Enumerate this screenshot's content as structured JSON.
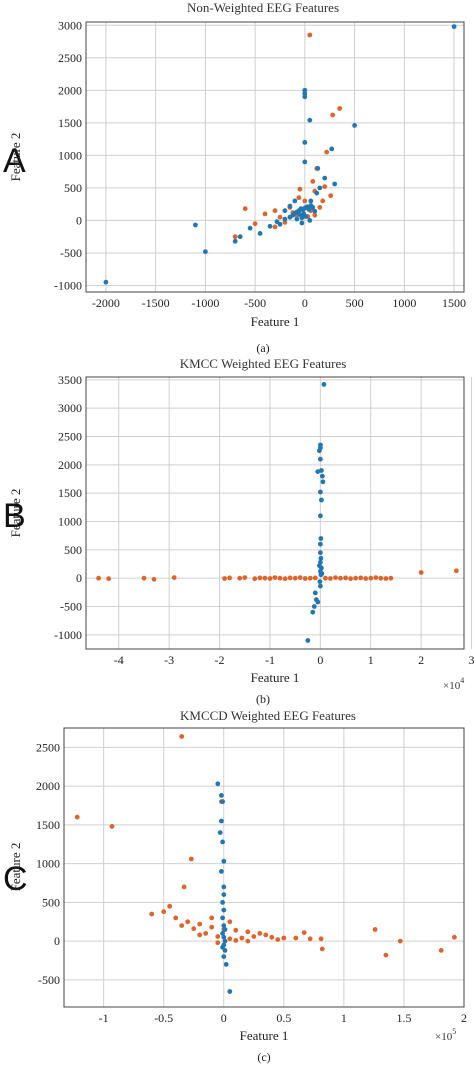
{
  "series_colors": {
    "blue": "#1f77b4",
    "orange": "#e0642a"
  },
  "chart_data": [
    {
      "type": "scatter",
      "letter": "A",
      "title": "Non-Weighted EEG Features",
      "xlabel": "Feature 1",
      "ylabel": "Feature 2",
      "caption": "(a)",
      "multiplier_base": "",
      "multiplier_exp": "",
      "xlim": [
        -2200,
        1600
      ],
      "ylim": [
        -1100,
        3050
      ],
      "xticks": [
        -2000,
        -1500,
        -1000,
        -500,
        0,
        500,
        1000,
        1500
      ],
      "xtick_labels": [
        "-2000",
        "-1500",
        "-1000",
        "-500",
        "0",
        "500",
        "1000",
        "1500"
      ],
      "yticks": [
        -1000,
        -500,
        0,
        500,
        1000,
        1500,
        2000,
        2500,
        3000
      ],
      "ytick_labels": [
        "-1000",
        "-500",
        "0",
        "500",
        "1000",
        "1500",
        "2000",
        "2500",
        "3000"
      ],
      "series": [
        {
          "color": "orange",
          "points": [
            [
              50,
              2850
            ],
            [
              280,
              1620
            ],
            [
              350,
              1720
            ],
            [
              220,
              1050
            ],
            [
              120,
              800
            ],
            [
              80,
              600
            ],
            [
              -60,
              350
            ],
            [
              -150,
              200
            ],
            [
              -300,
              150
            ],
            [
              -400,
              100
            ],
            [
              -500,
              -50
            ],
            [
              -300,
              -100
            ],
            [
              -700,
              -250
            ],
            [
              -600,
              180
            ],
            [
              -50,
              480
            ],
            [
              100,
              450
            ],
            [
              200,
              520
            ],
            [
              180,
              300
            ],
            [
              -120,
              120
            ],
            [
              30,
              60
            ],
            [
              -80,
              80
            ],
            [
              60,
              150
            ],
            [
              150,
              200
            ],
            [
              -250,
              50
            ],
            [
              -200,
              -30
            ],
            [
              100,
              80
            ],
            [
              0,
              300
            ],
            [
              260,
              380
            ]
          ]
        },
        {
          "color": "blue",
          "points": [
            [
              1500,
              2980
            ],
            [
              -2000,
              -950
            ],
            [
              -1000,
              -480
            ],
            [
              -1100,
              -70
            ],
            [
              -700,
              -320
            ],
            [
              -650,
              -250
            ],
            [
              -550,
              -120
            ],
            [
              -450,
              -200
            ],
            [
              -350,
              -90
            ],
            [
              -250,
              -60
            ],
            [
              -280,
              -20
            ],
            [
              -200,
              20
            ],
            [
              -150,
              50
            ],
            [
              -120,
              80
            ],
            [
              -100,
              110
            ],
            [
              -80,
              130
            ],
            [
              -60,
              150
            ],
            [
              -40,
              180
            ],
            [
              -20,
              160
            ],
            [
              0,
              190
            ],
            [
              20,
              210
            ],
            [
              40,
              170
            ],
            [
              60,
              230
            ],
            [
              80,
              200
            ],
            [
              100,
              140
            ],
            [
              -50,
              90
            ],
            [
              -30,
              40
            ],
            [
              0,
              2000
            ],
            [
              0,
              1950
            ],
            [
              0,
              1900
            ],
            [
              0,
              1200
            ],
            [
              0,
              900
            ],
            [
              50,
              1540
            ],
            [
              500,
              1460
            ],
            [
              270,
              1100
            ],
            [
              130,
              800
            ],
            [
              200,
              650
            ],
            [
              300,
              560
            ],
            [
              150,
              500
            ],
            [
              120,
              420
            ],
            [
              60,
              300
            ],
            [
              -100,
              300
            ],
            [
              -150,
              220
            ],
            [
              -200,
              150
            ],
            [
              -10,
              100
            ],
            [
              10,
              60
            ],
            [
              -80,
              20
            ],
            [
              -30,
              -40
            ],
            [
              50,
              0
            ]
          ]
        }
      ]
    },
    {
      "type": "scatter",
      "letter": "B",
      "title": "KMCC Weighted EEG Features",
      "xlabel": "Feature 1",
      "ylabel": "Feature 2",
      "caption": "(b)",
      "multiplier_base": "×10",
      "multiplier_exp": "4",
      "xlim": [
        -4.65,
        2.85
      ],
      "ylim": [
        -1250,
        3550
      ],
      "xticks": [
        -4,
        -3,
        -2,
        -1,
        0,
        1,
        2,
        3
      ],
      "xtick_labels": [
        "-4",
        "-3",
        "-2",
        "-1",
        "0",
        "1",
        "2",
        "3"
      ],
      "yticks": [
        -1000,
        -500,
        0,
        500,
        1000,
        1500,
        2000,
        2500,
        3000,
        3500
      ],
      "ytick_labels": [
        "-1000",
        "-500",
        "0",
        "500",
        "1000",
        "1500",
        "2000",
        "2500",
        "3000",
        "3500"
      ],
      "series": [
        {
          "color": "orange",
          "points": [
            [
              -4.4,
              0
            ],
            [
              -4.2,
              -10
            ],
            [
              -3.5,
              0
            ],
            [
              -3.3,
              -20
            ],
            [
              -2.9,
              10
            ],
            [
              -1.9,
              -5
            ],
            [
              -1.8,
              5
            ],
            [
              -1.6,
              0
            ],
            [
              -1.5,
              10
            ],
            [
              -1.3,
              -10
            ],
            [
              -1.2,
              5
            ],
            [
              -1.1,
              0
            ],
            [
              -1.0,
              -5
            ],
            [
              -0.9,
              10
            ],
            [
              -0.8,
              0
            ],
            [
              -0.7,
              -10
            ],
            [
              -0.6,
              5
            ],
            [
              -0.5,
              0
            ],
            [
              -0.4,
              10
            ],
            [
              -0.3,
              -5
            ],
            [
              -0.2,
              0
            ],
            [
              -0.1,
              5
            ],
            [
              0.1,
              0
            ],
            [
              0.2,
              -5
            ],
            [
              0.3,
              10
            ],
            [
              0.4,
              0
            ],
            [
              0.5,
              5
            ],
            [
              0.6,
              -10
            ],
            [
              0.7,
              0
            ],
            [
              0.8,
              5
            ],
            [
              0.9,
              -5
            ],
            [
              1.0,
              0
            ],
            [
              1.1,
              10
            ],
            [
              1.2,
              0
            ],
            [
              1.3,
              -5
            ],
            [
              1.4,
              0
            ],
            [
              2.0,
              100
            ],
            [
              2.7,
              130
            ]
          ]
        },
        {
          "color": "blue",
          "points": [
            [
              0.07,
              3420
            ],
            [
              0.0,
              2350
            ],
            [
              0.0,
              2300
            ],
            [
              -0.02,
              2250
            ],
            [
              0.0,
              2100
            ],
            [
              0.02,
              1900
            ],
            [
              -0.05,
              1880
            ],
            [
              0.04,
              1800
            ],
            [
              0.05,
              1700
            ],
            [
              0.0,
              1520
            ],
            [
              0.02,
              1380
            ],
            [
              0.0,
              1100
            ],
            [
              0.01,
              700
            ],
            [
              0.0,
              600
            ],
            [
              0.0,
              450
            ],
            [
              0.01,
              350
            ],
            [
              0.0,
              280
            ],
            [
              -0.02,
              220
            ],
            [
              0.02,
              180
            ],
            [
              0.0,
              120
            ],
            [
              0.01,
              60
            ],
            [
              -0.01,
              -60
            ],
            [
              0.0,
              -140
            ],
            [
              -0.1,
              -260
            ],
            [
              -0.08,
              -380
            ],
            [
              -0.12,
              -500
            ],
            [
              -0.15,
              -600
            ],
            [
              -0.25,
              -1100
            ],
            [
              -0.05,
              -420
            ],
            [
              0.03,
              80
            ]
          ]
        }
      ]
    },
    {
      "type": "scatter",
      "letter": "C",
      "title": "KMCCD Weighted EEG Features",
      "xlabel": "Feature 1",
      "ylabel": "Feature 2",
      "caption": "(c)",
      "multiplier_base": "×10",
      "multiplier_exp": "5",
      "xlim": [
        -1.33,
        2.0
      ],
      "ylim": [
        -850,
        2750
      ],
      "xticks": [
        -1,
        -0.5,
        0,
        0.5,
        1,
        1.5,
        2
      ],
      "xtick_labels": [
        "-1",
        "-0.5",
        "0",
        "0.5",
        "1",
        "1.5",
        "2"
      ],
      "yticks": [
        -500,
        0,
        500,
        1000,
        1500,
        2000,
        2500
      ],
      "ytick_labels": [
        "-500",
        "0",
        "500",
        "1000",
        "1500",
        "2000",
        "2500"
      ],
      "series": [
        {
          "color": "orange",
          "points": [
            [
              -0.35,
              2640
            ],
            [
              -1.22,
              1600
            ],
            [
              -0.93,
              1480
            ],
            [
              -0.27,
              1060
            ],
            [
              -0.02,
              1800
            ],
            [
              -0.33,
              700
            ],
            [
              -0.45,
              450
            ],
            [
              -0.5,
              380
            ],
            [
              -0.6,
              350
            ],
            [
              -0.4,
              300
            ],
            [
              -0.3,
              250
            ],
            [
              -0.2,
              220
            ],
            [
              -0.1,
              180
            ],
            [
              0.0,
              150
            ],
            [
              0.1,
              140
            ],
            [
              0.2,
              120
            ],
            [
              0.3,
              100
            ],
            [
              0.35,
              80
            ],
            [
              0.25,
              60
            ],
            [
              0.15,
              40
            ],
            [
              0.05,
              30
            ],
            [
              -0.05,
              60
            ],
            [
              -0.15,
              100
            ],
            [
              -0.25,
              160
            ],
            [
              -0.35,
              200
            ],
            [
              0.4,
              50
            ],
            [
              0.45,
              20
            ],
            [
              0.5,
              40
            ],
            [
              0.6,
              40
            ],
            [
              0.67,
              110
            ],
            [
              0.72,
              30
            ],
            [
              0.81,
              30
            ],
            [
              0.82,
              -100
            ],
            [
              1.26,
              150
            ],
            [
              1.35,
              -180
            ],
            [
              1.47,
              0
            ],
            [
              1.81,
              -120
            ],
            [
              1.92,
              50
            ],
            [
              -0.1,
              300
            ],
            [
              0.05,
              250
            ],
            [
              -0.2,
              80
            ],
            [
              0.2,
              0
            ],
            [
              -0.05,
              -20
            ],
            [
              0.1,
              10
            ]
          ]
        },
        {
          "color": "blue",
          "points": [
            [
              -0.05,
              2030
            ],
            [
              -0.02,
              1880
            ],
            [
              -0.01,
              1800
            ],
            [
              -0.02,
              1550
            ],
            [
              -0.03,
              1400
            ],
            [
              -0.01,
              1280
            ],
            [
              0.0,
              1030
            ],
            [
              -0.02,
              900
            ],
            [
              0.0,
              700
            ],
            [
              0.0,
              600
            ],
            [
              -0.01,
              500
            ],
            [
              0.0,
              400
            ],
            [
              -0.01,
              300
            ],
            [
              0.0,
              200
            ],
            [
              0.01,
              150
            ],
            [
              -0.01,
              100
            ],
            [
              0.0,
              50
            ],
            [
              0.01,
              0
            ],
            [
              0.0,
              -50
            ],
            [
              0.01,
              -120
            ],
            [
              0.0,
              -200
            ],
            [
              0.02,
              -300
            ],
            [
              0.05,
              -650
            ],
            [
              -0.01,
              -80
            ]
          ]
        }
      ]
    }
  ]
}
